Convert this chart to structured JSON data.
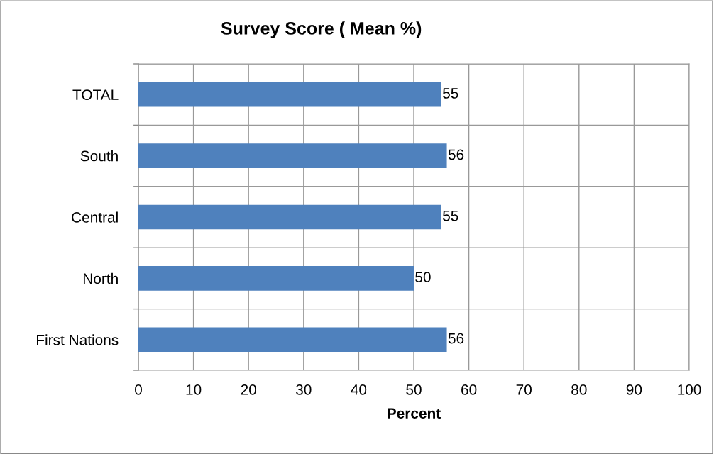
{
  "chart_data": {
    "type": "bar",
    "orientation": "horizontal",
    "title": "Survey Score ( Mean %)",
    "xlabel": "Percent",
    "categories": [
      "TOTAL",
      "South",
      "Central",
      "North",
      "First Nations"
    ],
    "values": [
      55,
      56,
      55,
      50,
      56
    ],
    "color": "#4f81bd",
    "xlim": [
      0,
      100
    ],
    "xticks": [
      0,
      10,
      20,
      30,
      40,
      50,
      60,
      70,
      80,
      90,
      100
    ],
    "grid": true,
    "data_labels": true
  }
}
